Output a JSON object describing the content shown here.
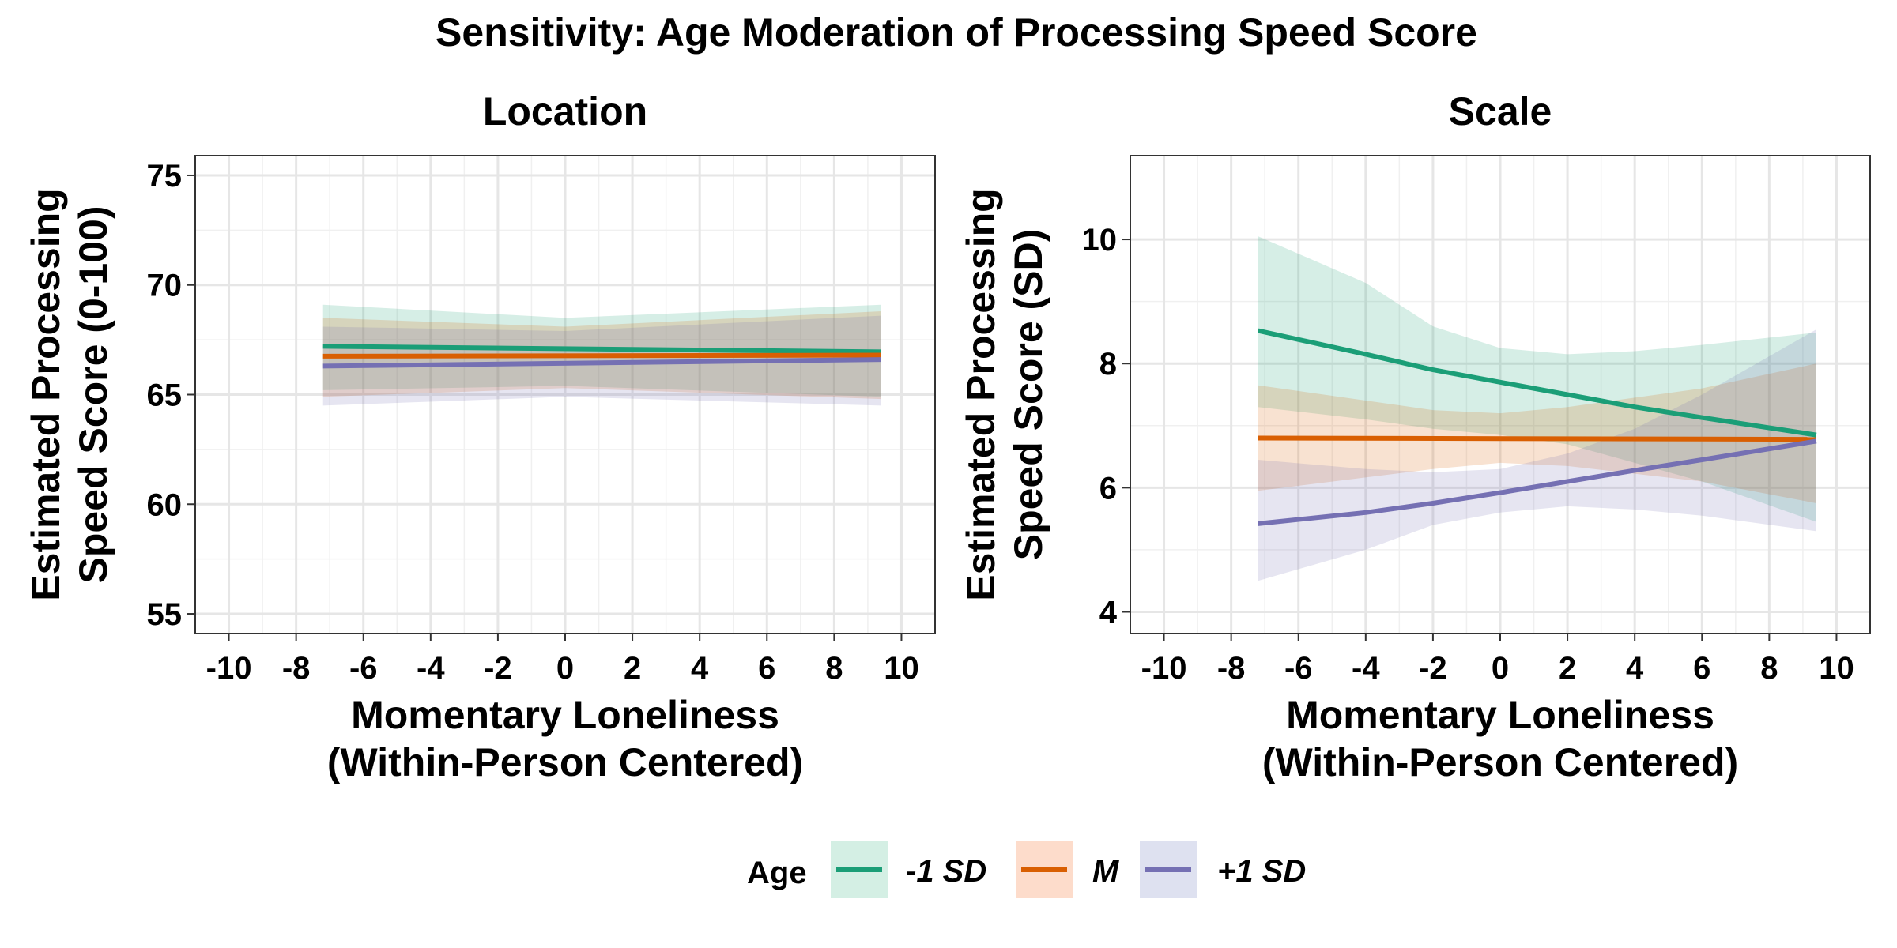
{
  "title": "Sensitivity: Age Moderation of Processing Speed Score",
  "legend": {
    "title": "Age",
    "position": "bottom",
    "entries": [
      {
        "label": "-1 SD",
        "color": "#1B9E77",
        "fill": "#D4EFE4"
      },
      {
        "label": "M",
        "color": "#D95F02",
        "fill": "#FDDCCB"
      },
      {
        "label": "+1 SD",
        "color": "#7570B3",
        "fill": "#DEE1F0"
      }
    ]
  },
  "chart_data": [
    {
      "type": "line",
      "panel_title": "Location",
      "xlabel": [
        "Momentary Loneliness",
        "(Within-Person Centered)"
      ],
      "ylabel": [
        "Estimated Processing",
        "Speed Score (0-100)"
      ],
      "xlim": [
        -11,
        11
      ],
      "ylim": [
        54.1,
        75.9
      ],
      "xticks": [
        -10,
        -8,
        -6,
        -4,
        -2,
        0,
        2,
        4,
        6,
        8,
        10
      ],
      "xtick_labels": [
        "-10",
        "-8",
        "-6",
        "-4",
        "-2",
        "0",
        "2",
        "4",
        "6",
        "8",
        "10"
      ],
      "yticks": [
        55,
        60,
        65,
        70,
        75
      ],
      "ytick_labels": [
        "55",
        "60",
        "65",
        "70",
        "75"
      ],
      "grid": true,
      "series": [
        {
          "name": "-1 SD",
          "x": [
            -7.2,
            9.4
          ],
          "y": [
            67.2,
            66.95
          ],
          "ribbon": {
            "x": [
              -7.2,
              0,
              9.4
            ],
            "lower": [
              65.2,
              65.4,
              64.9
            ],
            "upper": [
              69.1,
              68.5,
              69.1
            ]
          }
        },
        {
          "name": "M",
          "x": [
            -7.2,
            9.4
          ],
          "y": [
            66.75,
            66.8
          ],
          "ribbon": {
            "x": [
              -7.2,
              0,
              9.4
            ],
            "lower": [
              64.9,
              65.3,
              64.8
            ],
            "upper": [
              68.5,
              68.1,
              68.8
            ]
          }
        },
        {
          "name": "+1 SD",
          "x": [
            -7.2,
            9.4
          ],
          "y": [
            66.3,
            66.6
          ],
          "ribbon": {
            "x": [
              -7.2,
              0,
              9.4
            ],
            "lower": [
              64.5,
              64.9,
              64.5
            ],
            "upper": [
              68.1,
              67.9,
              68.6
            ]
          }
        }
      ]
    },
    {
      "type": "line",
      "panel_title": "Scale",
      "xlabel": [
        "Momentary Loneliness",
        "(Within-Person Centered)"
      ],
      "ylabel": [
        "Estimated Processing",
        "Speed Score (SD)"
      ],
      "xlim": [
        -11,
        11
      ],
      "ylim": [
        3.65,
        11.35
      ],
      "xticks": [
        -10,
        -8,
        -6,
        -4,
        -2,
        0,
        2,
        4,
        6,
        8,
        10
      ],
      "xtick_labels": [
        "-10",
        "-8",
        "-6",
        "-4",
        "-2",
        "0",
        "2",
        "4",
        "6",
        "8",
        "10"
      ],
      "yticks": [
        4,
        6,
        8,
        10
      ],
      "ytick_labels": [
        "4",
        "6",
        "8",
        "10"
      ],
      "grid": true,
      "series": [
        {
          "name": "-1 SD",
          "x": [
            -7.2,
            -4,
            -2,
            0,
            2,
            4,
            6,
            9.4
          ],
          "y": [
            8.53,
            8.15,
            7.9,
            7.7,
            7.5,
            7.3,
            7.13,
            6.85
          ],
          "ribbon": {
            "x": [
              -7.2,
              -4,
              -2,
              0,
              2,
              4,
              6,
              9.4
            ],
            "lower": [
              7.3,
              7.1,
              6.95,
              6.85,
              6.7,
              6.4,
              6.1,
              5.45
            ],
            "upper": [
              10.05,
              9.3,
              8.6,
              8.25,
              8.15,
              8.2,
              8.3,
              8.5
            ]
          }
        },
        {
          "name": "M",
          "x": [
            -7.2,
            9.4
          ],
          "y": [
            6.8,
            6.78
          ],
          "ribbon": {
            "x": [
              -7.2,
              -2,
              0,
              2,
              6,
              9.4
            ],
            "lower": [
              5.95,
              6.3,
              6.4,
              6.35,
              6.1,
              5.75
            ],
            "upper": [
              7.65,
              7.25,
              7.2,
              7.3,
              7.6,
              8.0
            ]
          }
        },
        {
          "name": "+1 SD",
          "x": [
            -7.2,
            -4,
            -2,
            0,
            2,
            4,
            6,
            9.4
          ],
          "y": [
            5.42,
            5.6,
            5.75,
            5.92,
            6.1,
            6.28,
            6.45,
            6.75
          ],
          "ribbon": {
            "x": [
              -7.2,
              -4,
              -2,
              0,
              2,
              4,
              6,
              9.4
            ],
            "lower": [
              4.5,
              5.0,
              5.4,
              5.6,
              5.7,
              5.65,
              5.55,
              5.3
            ],
            "upper": [
              6.45,
              6.3,
              6.25,
              6.3,
              6.55,
              6.95,
              7.5,
              8.55
            ]
          }
        }
      ]
    }
  ]
}
